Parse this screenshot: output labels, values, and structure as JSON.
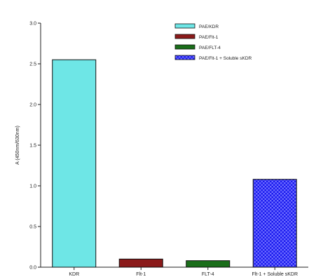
{
  "chart_data": {
    "type": "bar",
    "categories": [
      "KDR",
      "Flt-1",
      "FLT-4",
      "Flt-1 + Soluble sKDR"
    ],
    "values": [
      2.55,
      0.1,
      0.08,
      1.08
    ],
    "series_names": [
      "PAE/KDR",
      "PAE/Flt-1",
      "PAE/FLT-4",
      "PAE/Flt-1 + Soluble sKDR"
    ],
    "colors": [
      "#6ee6e6",
      "#8b1a1a",
      "#1a6e1a",
      "#1a1aee"
    ],
    "patterns": [
      "solid",
      "solid",
      "solid",
      "checker"
    ],
    "title": "",
    "xlabel": "",
    "ylabel": "A (450nm/630nm)",
    "ylim": [
      0,
      3.0
    ],
    "yticks": [
      "0.0",
      "0.5",
      "1.0",
      "1.5",
      "2.0",
      "2.5",
      "3.0"
    ],
    "legend": {
      "position": "top-right",
      "entries": [
        "PAE/KDR",
        "PAE/Flt-1",
        "PAE/FLT-4",
        "PAE/Flt-1 + Soluble sKDR"
      ]
    },
    "grid": false
  }
}
